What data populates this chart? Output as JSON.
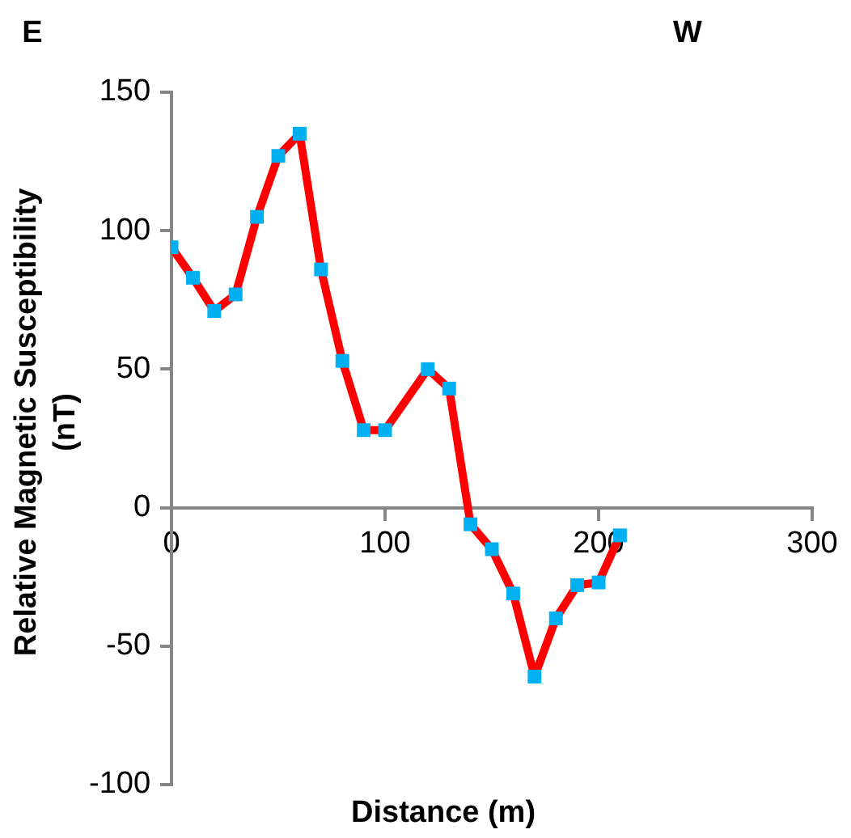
{
  "chart_data": {
    "type": "line",
    "xlabel": "Distance (m)",
    "ylabel": "Relative Magnetic Susceptibility (nT)",
    "annotations": [
      "E",
      "W"
    ],
    "x": [
      0,
      10,
      20,
      30,
      40,
      50,
      60,
      70,
      80,
      90,
      100,
      120,
      130,
      140,
      150,
      160,
      170,
      180,
      190,
      200,
      210
    ],
    "series": [
      {
        "color": "#ff0000",
        "marker": "none",
        "values": [
          94,
          83,
          71,
          77,
          105,
          127,
          135,
          86,
          53,
          28,
          28,
          50,
          43,
          -6,
          -15,
          -31,
          -61,
          -40,
          -28,
          -27,
          -10
        ]
      },
      {
        "type": "scatter",
        "color": "#00b0f0",
        "marker": "square",
        "values": [
          94,
          83,
          71,
          77,
          105,
          127,
          135,
          86,
          53,
          28,
          28,
          50,
          43,
          -6,
          -15,
          -31,
          -61,
          -40,
          -28,
          -27,
          -10
        ]
      }
    ],
    "xlim": [
      0,
      300
    ],
    "xticks": [
      0,
      100,
      200,
      300
    ],
    "ylim": [
      -100,
      150
    ],
    "yticks": [
      -100,
      -50,
      0,
      50,
      100,
      150
    ],
    "line_style": "solid",
    "grid": false,
    "legend": false
  }
}
